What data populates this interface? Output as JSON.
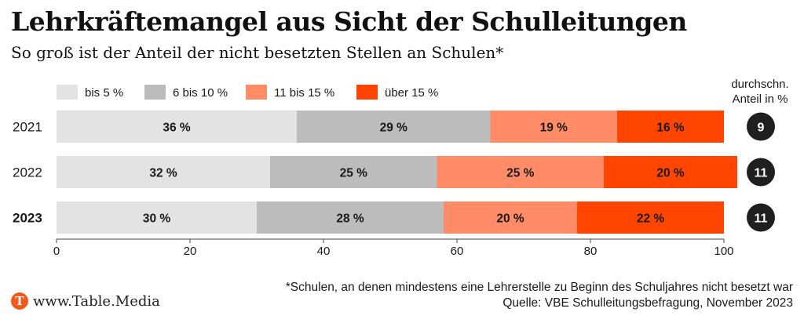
{
  "header": {
    "title": "Lehrkräftemangel aus Sicht der Schulleitungen",
    "subtitle": "So groß ist der Anteil der nicht besetzten Stellen an Schulen*"
  },
  "colors": {
    "bis5": "#e3e3e3",
    "6bis10": "#bcbcbc",
    "11bis15": "#ff8c66",
    "ueber15": "#ff4500",
    "avg_circle": "#1f1f1f"
  },
  "chart_data": {
    "type": "bar",
    "orientation": "horizontal",
    "stacked": true,
    "categories": [
      "2021",
      "2022",
      "2023"
    ],
    "series": [
      {
        "name": "bis 5 %",
        "values": [
          36,
          32,
          30
        ],
        "labels": [
          "36 %",
          "32 %",
          "30 %"
        ]
      },
      {
        "name": "6 bis 10 %",
        "values": [
          29,
          25,
          28
        ],
        "labels": [
          "29 %",
          "25 %",
          "28 %"
        ]
      },
      {
        "name": "11 bis 15 %",
        "values": [
          19,
          25,
          20
        ],
        "labels": [
          "19 %",
          "25 %",
          "20 %"
        ]
      },
      {
        "name": "über 15 %",
        "values": [
          16,
          20,
          22
        ],
        "labels": [
          "16 %",
          "20 %",
          "22 %"
        ]
      }
    ],
    "average": {
      "title_line1": "durchschn.",
      "title_line2": "Anteil in %",
      "values": [
        "9",
        "11",
        "11"
      ]
    },
    "xlim": [
      0,
      100
    ],
    "xticks": [
      "0",
      "20",
      "40",
      "60",
      "80",
      "100"
    ],
    "highlight_category": "2023",
    "legend_position": "top-left"
  },
  "footer": {
    "footnote": "*Schulen, an denen mindestens eine Lehrerstelle zu Beginn des Schuljahres nicht besetzt war",
    "source": "Quelle: VBE Schulleitungsbefragung, November 2023",
    "brand_logo_letter": "T",
    "brand": "www.Table.Media"
  }
}
